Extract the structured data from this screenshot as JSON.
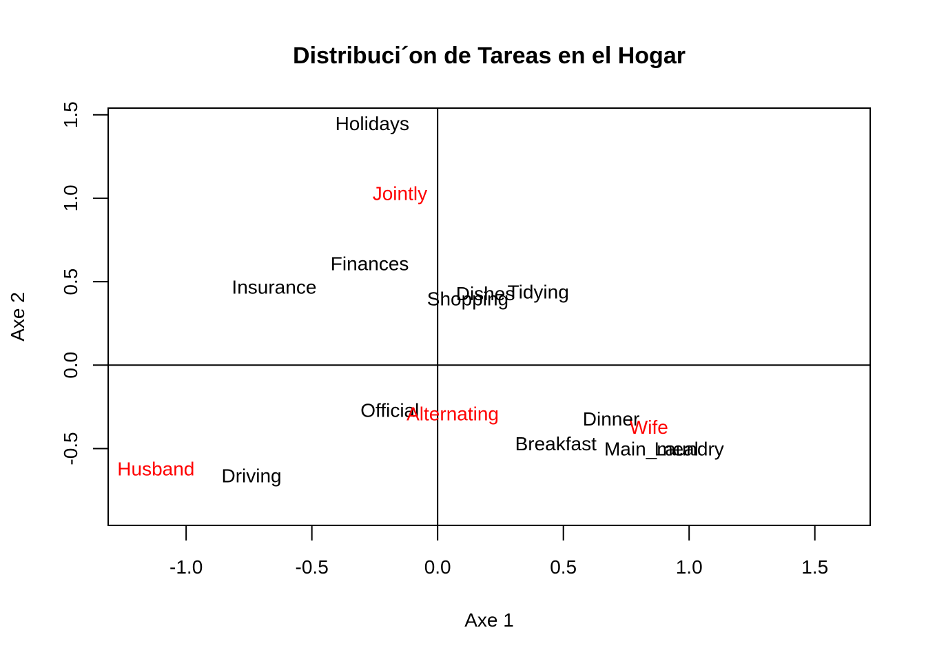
{
  "chart_data": {
    "type": "scatter",
    "title": "Distribuci´on de Tareas en el Hogar",
    "xlabel": "Axe 1",
    "ylabel": "Axe 2",
    "xlim": [
      -1.31,
      1.72
    ],
    "ylim": [
      -0.96,
      1.54
    ],
    "x_ticks": [
      -1.0,
      -0.5,
      0.0,
      0.5,
      1.0,
      1.5
    ],
    "y_ticks": [
      -0.5,
      0.0,
      0.5,
      1.0,
      1.5
    ],
    "reference_lines": {
      "x": 0,
      "y": 0
    },
    "grid": false,
    "colors": {
      "rows": "#000000",
      "columns": "#ff0000"
    },
    "series": [
      {
        "role": "rows",
        "points": [
          {
            "label": "Holidays",
            "x": -0.26,
            "y": 1.45
          },
          {
            "label": "Finances",
            "x": -0.27,
            "y": 0.61
          },
          {
            "label": "Insurance",
            "x": -0.65,
            "y": 0.47
          },
          {
            "label": "Shopping",
            "x": 0.12,
            "y": 0.4
          },
          {
            "label": "Dishes",
            "x": 0.19,
            "y": 0.43
          },
          {
            "label": "Tidying",
            "x": 0.4,
            "y": 0.44
          },
          {
            "label": "Official",
            "x": -0.19,
            "y": -0.27
          },
          {
            "label": "Dinner",
            "x": 0.69,
            "y": -0.32
          },
          {
            "label": "Breakfast",
            "x": 0.47,
            "y": -0.47
          },
          {
            "label": "Main_meal",
            "x": 0.85,
            "y": -0.5
          },
          {
            "label": "Laundry",
            "x": 1.0,
            "y": -0.5
          },
          {
            "label": "Driving",
            "x": -0.74,
            "y": -0.66
          }
        ]
      },
      {
        "role": "columns",
        "points": [
          {
            "label": "Jointly",
            "x": -0.15,
            "y": 1.03
          },
          {
            "label": "Alternating",
            "x": 0.06,
            "y": -0.29
          },
          {
            "label": "Wife",
            "x": 0.84,
            "y": -0.37
          },
          {
            "label": "Husband",
            "x": -1.12,
            "y": -0.62
          }
        ]
      }
    ]
  }
}
